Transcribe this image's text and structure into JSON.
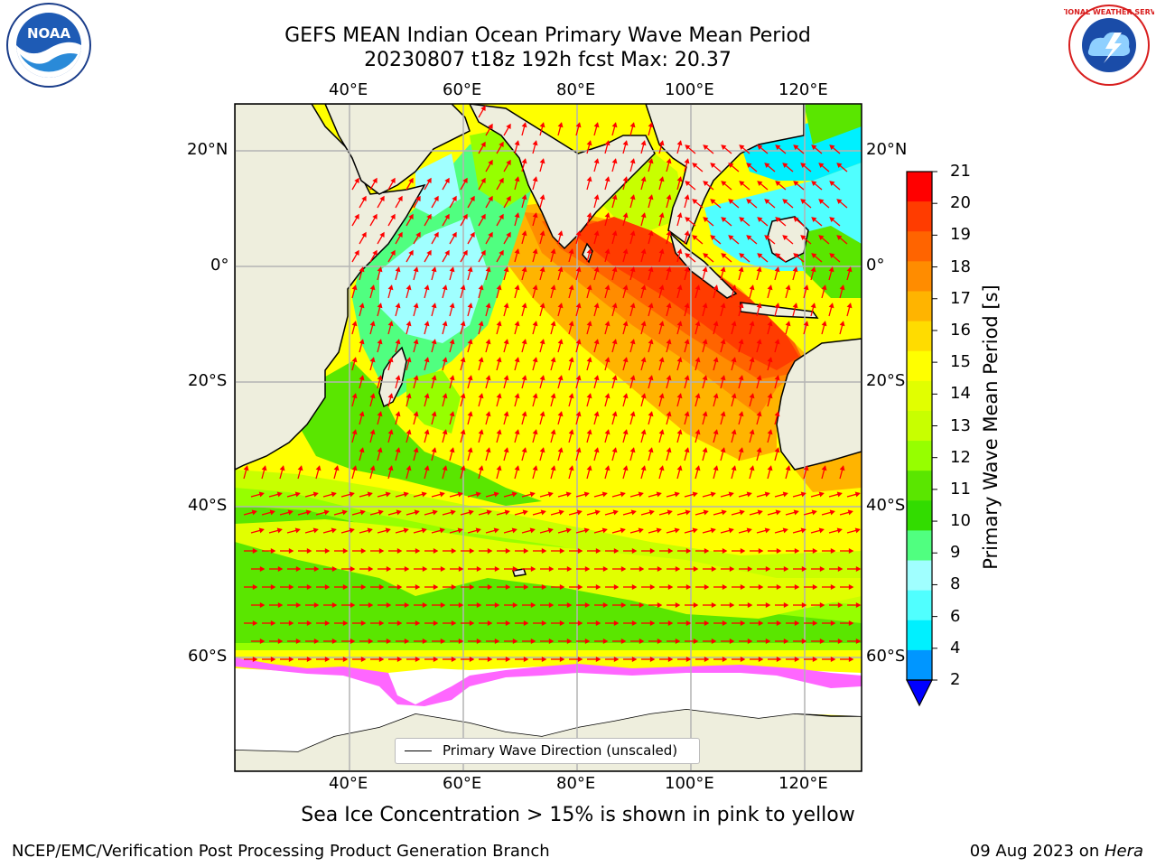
{
  "title": {
    "line1": "GEFS MEAN Indian Ocean Primary Wave Mean Period",
    "line2": "20230807 t18z 192h fcst    Max: 20.37"
  },
  "axes": {
    "lon_ticks": [
      "40°E",
      "60°E",
      "80°E",
      "100°E",
      "120°E"
    ],
    "lat_ticks": [
      "20°N",
      "0°",
      "20°S",
      "40°S",
      "60°S"
    ]
  },
  "colorbar": {
    "title": "Primary Wave Mean Period [s]",
    "tick_labels": [
      "21",
      "20",
      "19",
      "18",
      "17",
      "16",
      "15",
      "14",
      "13",
      "12",
      "11",
      "10",
      "9",
      "8",
      "6",
      "4",
      "2"
    ],
    "colors": [
      "#ff0000",
      "#ff3c00",
      "#ff6400",
      "#ff8c00",
      "#ffb400",
      "#ffdc00",
      "#ffff00",
      "#e1ff00",
      "#c8ff00",
      "#96ff00",
      "#5ae600",
      "#32dc00",
      "#50ff80",
      "#a0ffff",
      "#50ffff",
      "#00f0ff",
      "#0096ff"
    ],
    "under_color": "#0000ff"
  },
  "legend": {
    "label": "Primary Wave Direction (unscaled)"
  },
  "caption": "Sea Ice Concentration > 15% is shown in pink to yellow",
  "footer": {
    "left": "NCEP/EMC/Verification Post Processing Product Generation Branch",
    "right_date": "09 Aug 2023 on ",
    "right_host": "Hera"
  },
  "colors": {
    "land": "#eeeedd",
    "arrow": "#ff0000",
    "grid": "#b4b4b4",
    "sea_ice_pink": "#ff66ff"
  },
  "logos": {
    "left": "NOAA",
    "right": "NATIONAL WEATHER SERVICE"
  }
}
